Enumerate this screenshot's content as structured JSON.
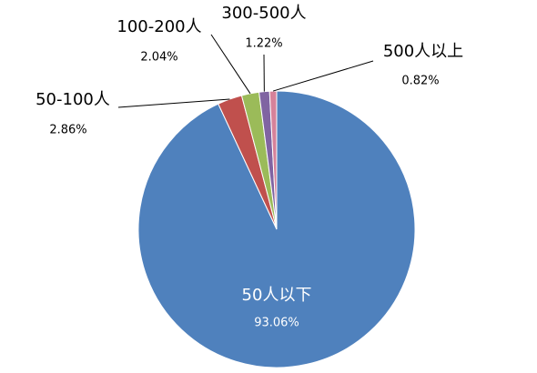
{
  "chart_data": {
    "type": "pie",
    "categories": [
      "50人以下",
      "50-100人",
      "100-200人",
      "300-500人",
      "500人以上"
    ],
    "values": [
      93.06,
      2.86,
      2.04,
      1.22,
      0.82
    ],
    "value_labels": [
      "93.06%",
      "2.86%",
      "2.04%",
      "1.22%",
      "0.82%"
    ],
    "colors": [
      "#4f81bd",
      "#c0504d",
      "#9bbb59",
      "#8064a2",
      "#d6829a"
    ]
  }
}
